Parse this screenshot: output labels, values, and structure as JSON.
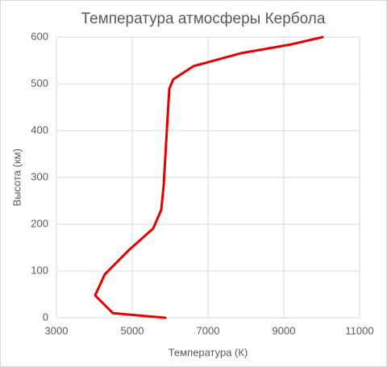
{
  "chart_data": {
    "type": "line",
    "title": "Температура атмосферы Кербола",
    "x_label": "Температура (К)",
    "y_label": "Высота (км)",
    "x": [
      5872,
      4489,
      4021,
      4277,
      4915,
      5553,
      5766,
      5830,
      5915,
      5979,
      6085,
      6617,
      7894,
      9170,
      10021
    ],
    "values": [
      0,
      10,
      48,
      93,
      145,
      191,
      231,
      283,
      403,
      490,
      510,
      538,
      566,
      584,
      600
    ],
    "color": "#e60000",
    "xlim": [
      3000,
      11000
    ],
    "xticks": [
      3000,
      5000,
      7000,
      9000,
      11000
    ],
    "ylim": [
      0,
      600
    ],
    "yticks": [
      0,
      100,
      200,
      300,
      400,
      500,
      600
    ],
    "grid": true
  }
}
